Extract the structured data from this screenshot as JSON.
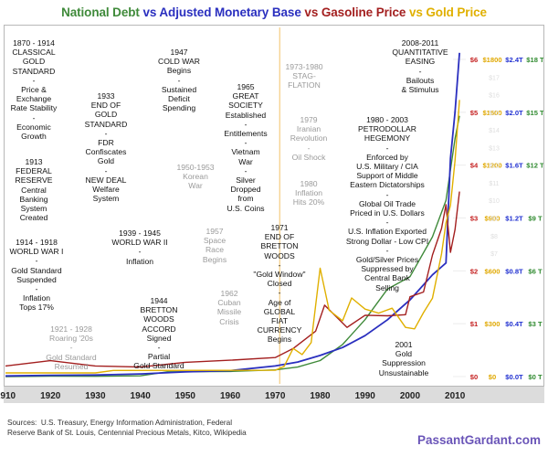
{
  "title": {
    "parts": [
      {
        "text": "National Debt",
        "color": "#3f8a3a"
      },
      {
        "text": "vs Adjusted Monetary Base",
        "color": "#2a2fbf"
      },
      {
        "text": "vs Gasoline Price",
        "color": "#a31f1f"
      },
      {
        "text": "vs Gold Price",
        "color": "#e0b000"
      }
    ]
  },
  "annotations": {
    "a1870": "1870 - 1914\nCLASSICAL\nGOLD\nSTANDARD\n-\nPrice &\nExchange\nRate Stability\n-\nEconomic\nGrowth",
    "a1913": "1913\nFEDERAL\nRESERVE\nCentral\nBanking\nSystem\nCreated",
    "a1914": "1914 - 1918\nWORLD WAR I\n-\nGold Standard\nSuspended\n-\nInflation\nTops 17%",
    "a1921": "1921 - 1928\nRoaring '20s\n-\nGold Standard\nResumed",
    "a1933": "1933\nEND OF\nGOLD\nSTANDARD\n-\nFDR\nConfiscates\nGold\n-\nNEW DEAL\nWelfare\nSystem",
    "a1939": "1939 - 1945\nWORLD WAR II\n-\nInflation",
    "a1944": "1944\nBRETTON\nWOODS\nACCORD\nSigned\n-\nPartial\nGold Standard",
    "a1947": "1947\nCOLD WAR\nBegins\n-\nSustained\nDeficit\nSpending",
    "a1950": "1950-1953\nKorean\nWar",
    "a1957": "1957\nSpace\nRace\nBegins",
    "a1962": "1962\nCuban\nMissile\nCrisis",
    "a1965": "1965\nGREAT\nSOCIETY\nEstablished\n-\nEntitlements\n-\nVietnam\nWar\n-\nSilver\nDropped\nfrom\nU.S. Coins",
    "a1971": "1971\nEND OF\nBRETTON\nWOODS\n-\n\"Gold Window\"\nClosed\n-\nAge of\nGLOBAL\nFIAT\nCURRENCY\nBegins",
    "a1973": "1973-1980\nSTAG-\nFLATION",
    "a1979": "1979\nIranian\nRevolution\n-\nOil Shock",
    "a1980i": "1980\nInflation\nHits 20%",
    "a1980": "1980 - 2003\nPETRODOLLAR\nHEGEMONY\n-\nEnforced by\nU.S. Military / CIA\nSupport of Middle\nEastern Dictatorships\n-\nGlobal Oil Trade\nPriced in U.S. Dollars\n-\nU.S. Inflation Exported\nStrong Dollar - Low CPI\n-\nGold/Silver Prices\nSuppressed by\nCentral Bank\nSelling",
    "a2001": "2001\nGold\nSuppression\nUnsustainable",
    "a2008": "2008-2011\nQUANTITATIVE\nEASING\n-\nBailouts\n& Stimulus"
  },
  "sources": "Sources:  U.S. Treasury, Energy Information Administration, Federal\nReserve Bank of St. Louis, Centennial Precious Metals, Kitco, Wikipedia",
  "site": "PassantGardant.com",
  "chart_data": {
    "type": "line",
    "title": "National Debt vs Adjusted Monetary Base vs Gasoline Price vs Gold Price",
    "xlim": [
      1910,
      2012
    ],
    "x_ticks": [
      "1910",
      "1920",
      "1930",
      "1940",
      "1950",
      "1960",
      "1970",
      "1980",
      "1990",
      "2000",
      "2010"
    ],
    "right_axes": [
      {
        "name": "Gasoline",
        "color": "#c41e1e",
        "labels": [
          "$0",
          "$1",
          "$2",
          "$3",
          "$4",
          "$5",
          "$6"
        ]
      },
      {
        "name": "Gold",
        "color": "#e0a800",
        "labels": [
          "$0",
          "$300",
          "$600",
          "$900",
          "$1200",
          "$1500",
          "$1800"
        ]
      },
      {
        "name": "Monetary Base",
        "color": "#1f2fd0",
        "labels": [
          "$0.0T",
          "$0.4T",
          "$0.8T",
          "$1.2T",
          "$1.6T",
          "$2.0T",
          "$2.4T"
        ]
      },
      {
        "name": "National Debt",
        "color": "#2f8a2f",
        "labels": [
          "$0 T",
          "$3 T",
          "$6 T",
          "$9 T",
          "$12 T",
          "$15 T",
          "$18 T"
        ]
      }
    ],
    "faded_labels": [
      "$17",
      "$16",
      "$15",
      "$14",
      "$13",
      "$12",
      "$11",
      "$10",
      "$9",
      "$8",
      "$7"
    ],
    "series": [
      {
        "name": "National Debt",
        "unit": "trillion USD",
        "color": "#3f8a3a",
        "x": [
          1910,
          1920,
          1930,
          1940,
          1946,
          1960,
          1970,
          1975,
          1980,
          1985,
          1990,
          1995,
          2000,
          2005,
          2008,
          2010,
          2011
        ],
        "values": [
          0.001,
          0.026,
          0.016,
          0.043,
          0.27,
          0.29,
          0.38,
          0.54,
          0.91,
          1.82,
          3.23,
          4.97,
          5.67,
          7.93,
          10.0,
          13.5,
          14.8
        ]
      },
      {
        "name": "Adjusted Monetary Base",
        "unit": "trillion USD",
        "color": "#2a2fbf",
        "x": [
          1910,
          1920,
          1930,
          1940,
          1950,
          1960,
          1970,
          1975,
          1980,
          1985,
          1990,
          1995,
          2000,
          2005,
          2007,
          2008,
          2009,
          2010,
          2011
        ],
        "values": [
          0.005,
          0.01,
          0.012,
          0.02,
          0.035,
          0.045,
          0.08,
          0.11,
          0.16,
          0.22,
          0.31,
          0.43,
          0.58,
          0.77,
          0.83,
          0.86,
          1.65,
          2.0,
          2.45
        ]
      },
      {
        "name": "Gasoline Price",
        "unit": "USD per gallon",
        "color": "#a31f1f",
        "x": [
          1910,
          1920,
          1930,
          1940,
          1950,
          1960,
          1970,
          1974,
          1979,
          1981,
          1986,
          1990,
          1995,
          1999,
          2000,
          2003,
          2005,
          2007,
          2008,
          2009,
          2010,
          2011
        ],
        "values": [
          0.2,
          0.3,
          0.2,
          0.18,
          0.27,
          0.31,
          0.36,
          0.53,
          0.86,
          1.35,
          0.93,
          1.16,
          1.15,
          1.17,
          1.51,
          1.6,
          2.3,
          2.8,
          3.25,
          2.35,
          2.78,
          3.5
        ]
      },
      {
        "name": "Gold Price",
        "unit": "USD per ounce",
        "color": "#e0b000",
        "x": [
          1910,
          1930,
          1934,
          1970,
          1972,
          1974,
          1976,
          1978,
          1980,
          1982,
          1985,
          1987,
          1990,
          1993,
          1996,
          1999,
          2001,
          2003,
          2005,
          2007,
          2008,
          2009,
          2010,
          2011
        ],
        "values": [
          20.67,
          20.67,
          35,
          36,
          58,
          160,
          125,
          193,
          615,
          376,
          317,
          446,
          383,
          360,
          388,
          279,
          271,
          363,
          445,
          695,
          872,
          972,
          1225,
          1570
        ]
      }
    ]
  }
}
